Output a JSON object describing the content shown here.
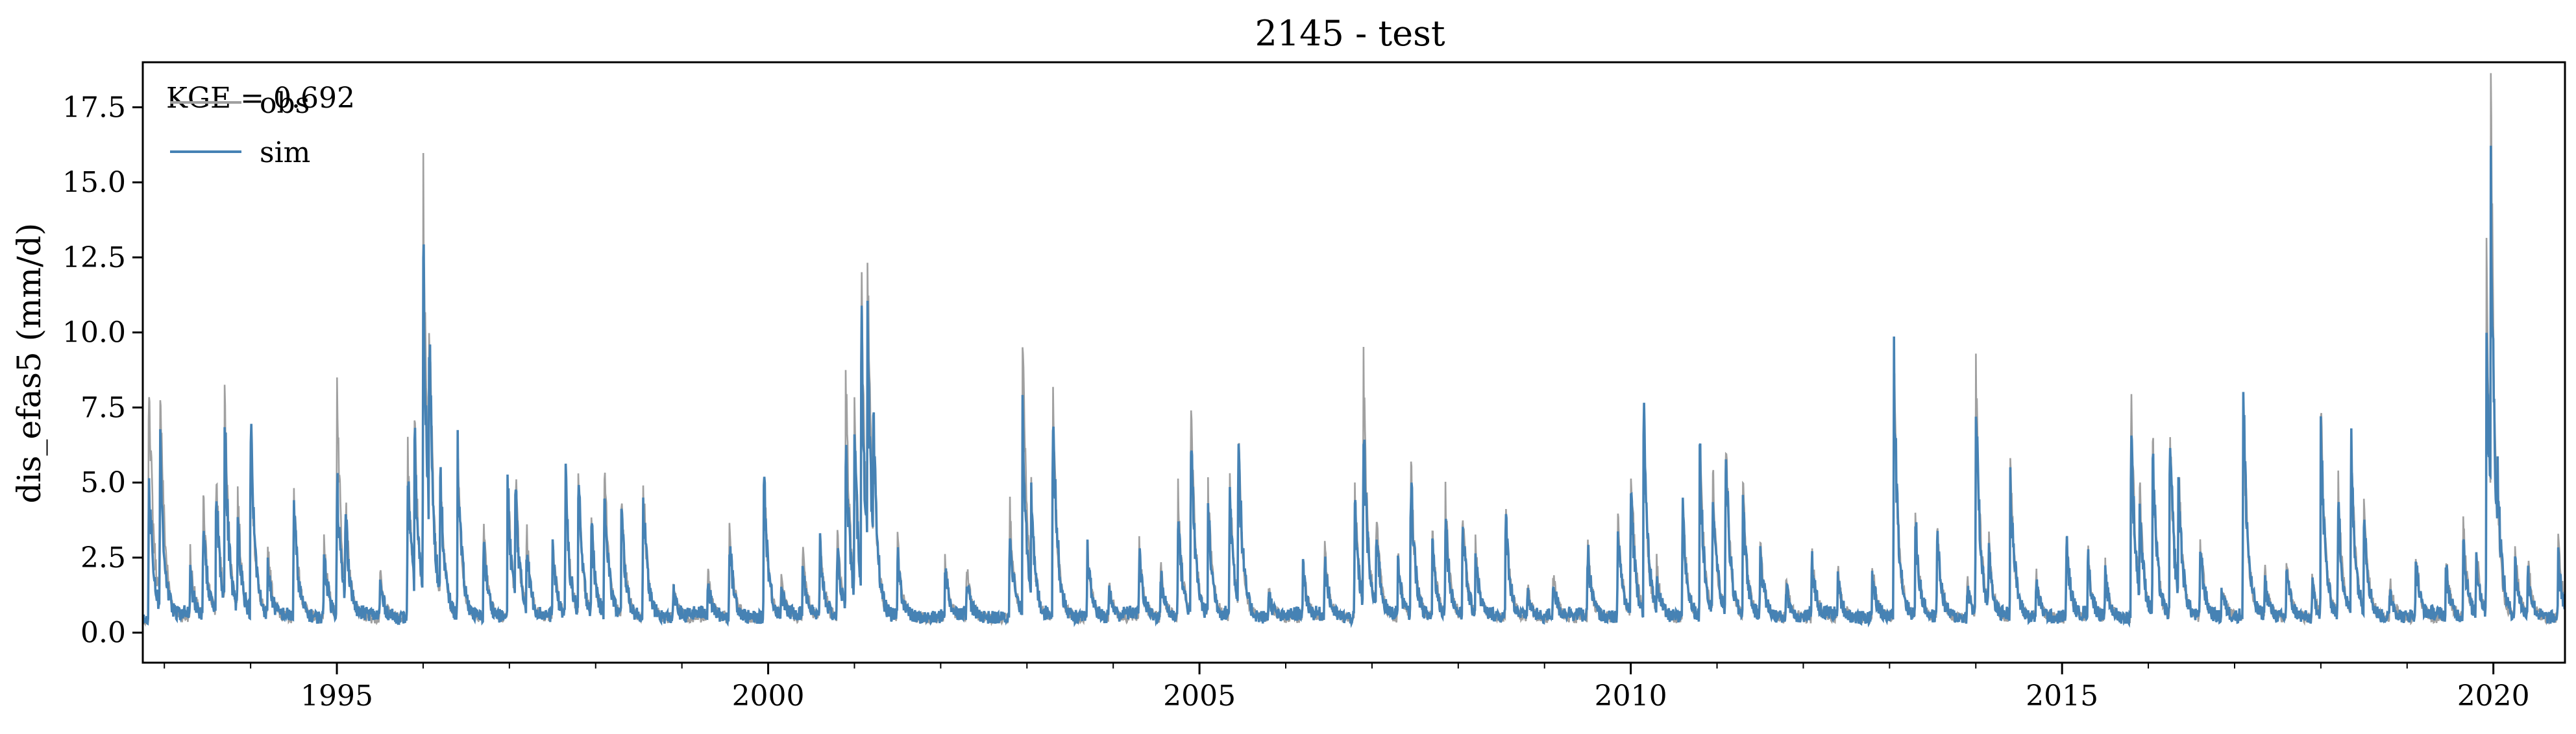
{
  "chart_data": {
    "type": "line",
    "title": "2145 - test",
    "xlabel": "",
    "ylabel": "dis_efas5 (mm/d)",
    "annotation": "KGE = 0.692",
    "xlim": [
      1992.75,
      2020.83
    ],
    "ylim": [
      -1.0,
      19.0
    ],
    "x_ticks": [
      1995,
      2000,
      2005,
      2010,
      2015,
      2020
    ],
    "x_tick_labels": [
      "1995",
      "2000",
      "2005",
      "2010",
      "2015",
      "2020"
    ],
    "y_ticks": [
      0.0,
      2.5,
      5.0,
      7.5,
      10.0,
      12.5,
      15.0,
      17.5
    ],
    "y_tick_labels": [
      "0.0",
      "2.5",
      "5.0",
      "7.5",
      "10.0",
      "12.5",
      "15.0",
      "17.5"
    ],
    "legend": {
      "position": "top-left",
      "entries": [
        "obs",
        "sim"
      ]
    },
    "grid": false,
    "colors": {
      "obs": "#a0a0a0",
      "sim": "#4682b4"
    },
    "baseline": 0.45,
    "series": [
      {
        "name": "obs",
        "peaks": [
          [
            1992.82,
            9.1
          ],
          [
            1992.95,
            8.9
          ],
          [
            1993.3,
            2.6
          ],
          [
            1993.45,
            4.5
          ],
          [
            1993.6,
            5.4
          ],
          [
            1993.7,
            7.9
          ],
          [
            1993.85,
            4.6
          ],
          [
            1994.0,
            6.8
          ],
          [
            1994.2,
            2.9
          ],
          [
            1994.5,
            5.0
          ],
          [
            1994.85,
            3.2
          ],
          [
            1995.0,
            8.7
          ],
          [
            1995.1,
            4.4
          ],
          [
            1995.5,
            1.9
          ],
          [
            1995.82,
            6.5
          ],
          [
            1995.9,
            7.2
          ],
          [
            1996.0,
            15.0
          ],
          [
            1996.07,
            11.2
          ],
          [
            1996.2,
            5.6
          ],
          [
            1996.4,
            5.9
          ],
          [
            1996.7,
            3.4
          ],
          [
            1996.98,
            5.1
          ],
          [
            1997.07,
            5.3
          ],
          [
            1997.2,
            3.3
          ],
          [
            1997.5,
            3.1
          ],
          [
            1997.65,
            5.1
          ],
          [
            1997.8,
            5.1
          ],
          [
            1997.95,
            4.0
          ],
          [
            1998.1,
            5.7
          ],
          [
            1998.3,
            4.4
          ],
          [
            1998.55,
            5.1
          ],
          [
            1998.9,
            1.6
          ],
          [
            1999.3,
            2.0
          ],
          [
            1999.55,
            3.5
          ],
          [
            1999.95,
            5.3
          ],
          [
            2000.15,
            1.8
          ],
          [
            2000.4,
            2.7
          ],
          [
            2000.6,
            3.2
          ],
          [
            2000.8,
            3.5
          ],
          [
            2000.9,
            8.3
          ],
          [
            2001.0,
            7.4
          ],
          [
            2001.08,
            11.5
          ],
          [
            2001.15,
            12.7
          ],
          [
            2001.22,
            6.5
          ],
          [
            2001.5,
            3.0
          ],
          [
            2002.05,
            2.5
          ],
          [
            2002.3,
            2.2
          ],
          [
            2002.8,
            4.2
          ],
          [
            2002.95,
            9.8
          ],
          [
            2003.05,
            4.7
          ],
          [
            2003.3,
            7.8
          ],
          [
            2003.7,
            3.0
          ],
          [
            2003.95,
            1.7
          ],
          [
            2004.3,
            3.0
          ],
          [
            2004.55,
            2.2
          ],
          [
            2004.75,
            4.5
          ],
          [
            2004.9,
            7.7
          ],
          [
            2005.1,
            4.5
          ],
          [
            2005.35,
            5.1
          ],
          [
            2005.45,
            6.6
          ],
          [
            2005.8,
            1.6
          ],
          [
            2006.2,
            2.4
          ],
          [
            2006.45,
            2.9
          ],
          [
            2006.8,
            4.7
          ],
          [
            2006.9,
            8.9
          ],
          [
            2007.05,
            4.0
          ],
          [
            2007.3,
            2.7
          ],
          [
            2007.45,
            5.6
          ],
          [
            2007.7,
            3.4
          ],
          [
            2007.85,
            4.4
          ],
          [
            2008.05,
            4.0
          ],
          [
            2008.2,
            3.0
          ],
          [
            2008.55,
            4.1
          ],
          [
            2008.8,
            1.5
          ],
          [
            2009.1,
            2.0
          ],
          [
            2009.5,
            3.0
          ],
          [
            2009.85,
            3.9
          ],
          [
            2010.0,
            5.8
          ],
          [
            2010.15,
            6.6
          ],
          [
            2010.3,
            2.2
          ],
          [
            2010.6,
            4.4
          ],
          [
            2010.8,
            6.4
          ],
          [
            2010.95,
            5.3
          ],
          [
            2011.1,
            6.8
          ],
          [
            2011.3,
            4.8
          ],
          [
            2011.5,
            3.1
          ],
          [
            2011.8,
            1.8
          ],
          [
            2012.1,
            2.8
          ],
          [
            2012.4,
            2.0
          ],
          [
            2012.8,
            2.2
          ],
          [
            2013.05,
            8.6
          ],
          [
            2013.3,
            3.8
          ],
          [
            2013.55,
            3.6
          ],
          [
            2013.9,
            1.8
          ],
          [
            2014.0,
            8.9
          ],
          [
            2014.15,
            3.0
          ],
          [
            2014.4,
            5.6
          ],
          [
            2014.7,
            1.9
          ],
          [
            2015.05,
            3.2
          ],
          [
            2015.3,
            2.7
          ],
          [
            2015.5,
            2.1
          ],
          [
            2015.8,
            7.8
          ],
          [
            2015.9,
            4.7
          ],
          [
            2016.05,
            6.3
          ],
          [
            2016.25,
            6.7
          ],
          [
            2016.35,
            5.4
          ],
          [
            2016.6,
            3.3
          ],
          [
            2016.85,
            1.7
          ],
          [
            2017.1,
            7.8
          ],
          [
            2017.35,
            2.0
          ],
          [
            2017.6,
            2.5
          ],
          [
            2017.9,
            1.8
          ],
          [
            2018.0,
            7.6
          ],
          [
            2018.2,
            4.8
          ],
          [
            2018.35,
            6.3
          ],
          [
            2018.5,
            4.5
          ],
          [
            2018.8,
            1.7
          ],
          [
            2019.1,
            2.8
          ],
          [
            2019.45,
            2.4
          ],
          [
            2019.65,
            3.5
          ],
          [
            2019.8,
            3.0
          ],
          [
            2019.92,
            11.5
          ],
          [
            2019.97,
            18.1
          ],
          [
            2020.05,
            3.6
          ],
          [
            2020.25,
            2.7
          ],
          [
            2020.4,
            2.4
          ],
          [
            2020.75,
            3.1
          ]
        ]
      },
      {
        "name": "sim",
        "peaks": [
          [
            1992.82,
            5.3
          ],
          [
            1992.95,
            6.2
          ],
          [
            1993.3,
            1.9
          ],
          [
            1993.45,
            3.8
          ],
          [
            1993.6,
            5.0
          ],
          [
            1993.7,
            6.8
          ],
          [
            1993.85,
            4.0
          ],
          [
            1994.0,
            6.9
          ],
          [
            1994.2,
            2.2
          ],
          [
            1994.5,
            4.3
          ],
          [
            1994.85,
            2.8
          ],
          [
            1995.0,
            5.3
          ],
          [
            1995.1,
            4.1
          ],
          [
            1995.5,
            1.6
          ],
          [
            1995.82,
            5.4
          ],
          [
            1995.9,
            6.5
          ],
          [
            1996.0,
            12.8
          ],
          [
            1996.07,
            10.5
          ],
          [
            1996.2,
            5.2
          ],
          [
            1996.4,
            5.8
          ],
          [
            1996.7,
            3.0
          ],
          [
            1996.98,
            4.8
          ],
          [
            1997.07,
            4.9
          ],
          [
            1997.2,
            2.9
          ],
          [
            1997.5,
            2.7
          ],
          [
            1997.65,
            5.0
          ],
          [
            1997.8,
            4.9
          ],
          [
            1997.95,
            3.6
          ],
          [
            1998.1,
            5.2
          ],
          [
            1998.3,
            4.0
          ],
          [
            1998.55,
            4.6
          ],
          [
            1998.9,
            1.3
          ],
          [
            1999.3,
            1.6
          ],
          [
            1999.55,
            3.1
          ],
          [
            1999.95,
            5.3
          ],
          [
            2000.15,
            1.5
          ],
          [
            2000.4,
            2.3
          ],
          [
            2000.6,
            2.9
          ],
          [
            2000.8,
            2.8
          ],
          [
            2000.9,
            6.7
          ],
          [
            2001.0,
            6.4
          ],
          [
            2001.08,
            10.3
          ],
          [
            2001.15,
            9.9
          ],
          [
            2001.22,
            6.7
          ],
          [
            2001.5,
            2.6
          ],
          [
            2002.05,
            2.2
          ],
          [
            2002.3,
            1.8
          ],
          [
            2002.8,
            3.7
          ],
          [
            2002.95,
            7.4
          ],
          [
            2003.05,
            4.2
          ],
          [
            2003.3,
            7.8
          ],
          [
            2003.7,
            2.6
          ],
          [
            2003.95,
            1.4
          ],
          [
            2004.3,
            2.6
          ],
          [
            2004.55,
            1.9
          ],
          [
            2004.75,
            4.0
          ],
          [
            2004.9,
            6.5
          ],
          [
            2005.1,
            4.1
          ],
          [
            2005.35,
            4.8
          ],
          [
            2005.45,
            6.5
          ],
          [
            2005.8,
            1.3
          ],
          [
            2006.2,
            2.0
          ],
          [
            2006.45,
            2.5
          ],
          [
            2006.8,
            4.2
          ],
          [
            2006.9,
            7.1
          ],
          [
            2007.05,
            3.6
          ],
          [
            2007.3,
            2.3
          ],
          [
            2007.45,
            5.3
          ],
          [
            2007.7,
            3.0
          ],
          [
            2007.85,
            4.0
          ],
          [
            2008.05,
            3.7
          ],
          [
            2008.2,
            2.6
          ],
          [
            2008.55,
            3.9
          ],
          [
            2008.8,
            1.3
          ],
          [
            2009.1,
            1.7
          ],
          [
            2009.5,
            2.7
          ],
          [
            2009.85,
            3.5
          ],
          [
            2010.0,
            5.0
          ],
          [
            2010.15,
            7.0
          ],
          [
            2010.3,
            1.9
          ],
          [
            2010.6,
            4.0
          ],
          [
            2010.8,
            5.8
          ],
          [
            2010.95,
            5.1
          ],
          [
            2011.1,
            6.2
          ],
          [
            2011.3,
            4.4
          ],
          [
            2011.5,
            2.8
          ],
          [
            2011.8,
            1.5
          ],
          [
            2012.1,
            2.4
          ],
          [
            2012.4,
            1.7
          ],
          [
            2012.8,
            1.9
          ],
          [
            2013.05,
            8.7
          ],
          [
            2013.3,
            3.6
          ],
          [
            2013.55,
            3.3
          ],
          [
            2013.9,
            1.5
          ],
          [
            2014.0,
            7.7
          ],
          [
            2014.15,
            2.7
          ],
          [
            2014.4,
            5.4
          ],
          [
            2014.7,
            1.6
          ],
          [
            2015.05,
            3.0
          ],
          [
            2015.3,
            2.4
          ],
          [
            2015.5,
            1.8
          ],
          [
            2015.8,
            6.8
          ],
          [
            2015.9,
            4.2
          ],
          [
            2016.05,
            6.0
          ],
          [
            2016.25,
            6.5
          ],
          [
            2016.35,
            5.0
          ],
          [
            2016.6,
            3.0
          ],
          [
            2016.85,
            1.4
          ],
          [
            2017.1,
            7.8
          ],
          [
            2017.35,
            1.7
          ],
          [
            2017.6,
            2.2
          ],
          [
            2017.9,
            1.5
          ],
          [
            2018.0,
            6.6
          ],
          [
            2018.2,
            4.4
          ],
          [
            2018.35,
            6.2
          ],
          [
            2018.5,
            4.1
          ],
          [
            2018.8,
            1.4
          ],
          [
            2019.1,
            2.4
          ],
          [
            2019.45,
            2.1
          ],
          [
            2019.65,
            3.1
          ],
          [
            2019.8,
            2.6
          ],
          [
            2019.92,
            10.3
          ],
          [
            2019.97,
            15.0
          ],
          [
            2020.05,
            5.3
          ],
          [
            2020.25,
            2.3
          ],
          [
            2020.4,
            2.0
          ],
          [
            2020.75,
            2.4
          ]
        ]
      }
    ]
  }
}
